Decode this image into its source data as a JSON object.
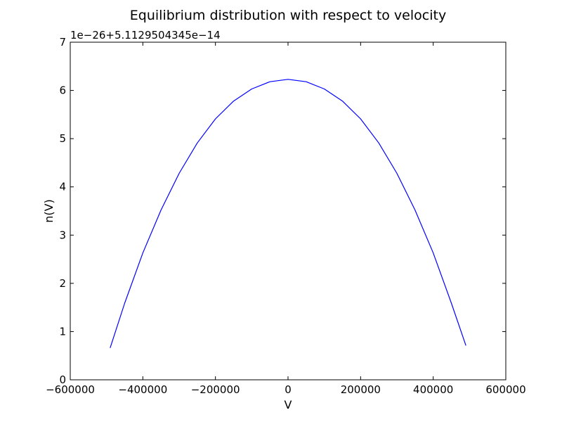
{
  "chart_data": {
    "type": "line",
    "title": "Equilibrium distribution with respect to velocity",
    "xlabel": "V",
    "ylabel": "n(V)",
    "y_offset_text": "1e−26+5.1129504345e−14",
    "xlim": [
      -600000,
      600000
    ],
    "ylim": [
      0,
      7
    ],
    "xticks": [
      -600000,
      -400000,
      -200000,
      0,
      200000,
      400000,
      600000
    ],
    "xtick_labels": [
      "−600000",
      "−400000",
      "−200000",
      "0",
      "200000",
      "400000",
      "600000"
    ],
    "yticks": [
      0,
      1,
      2,
      3,
      4,
      5,
      6,
      7
    ],
    "ytick_labels": [
      "0",
      "1",
      "2",
      "3",
      "4",
      "5",
      "6",
      "7"
    ],
    "grid": false,
    "line_color": "#0000ff",
    "series": [
      {
        "x": [
          -490000,
          -450000,
          -400000,
          -350000,
          -300000,
          -250000,
          -200000,
          -150000,
          -100000,
          -50000,
          0,
          50000,
          100000,
          150000,
          200000,
          250000,
          300000,
          350000,
          400000,
          450000,
          490000
        ],
        "y": [
          0.66,
          1.59,
          2.63,
          3.52,
          4.28,
          4.91,
          5.41,
          5.78,
          6.03,
          6.18,
          6.23,
          6.18,
          6.03,
          5.78,
          5.41,
          4.91,
          4.28,
          3.52,
          2.63,
          1.59,
          0.71
        ]
      }
    ]
  }
}
